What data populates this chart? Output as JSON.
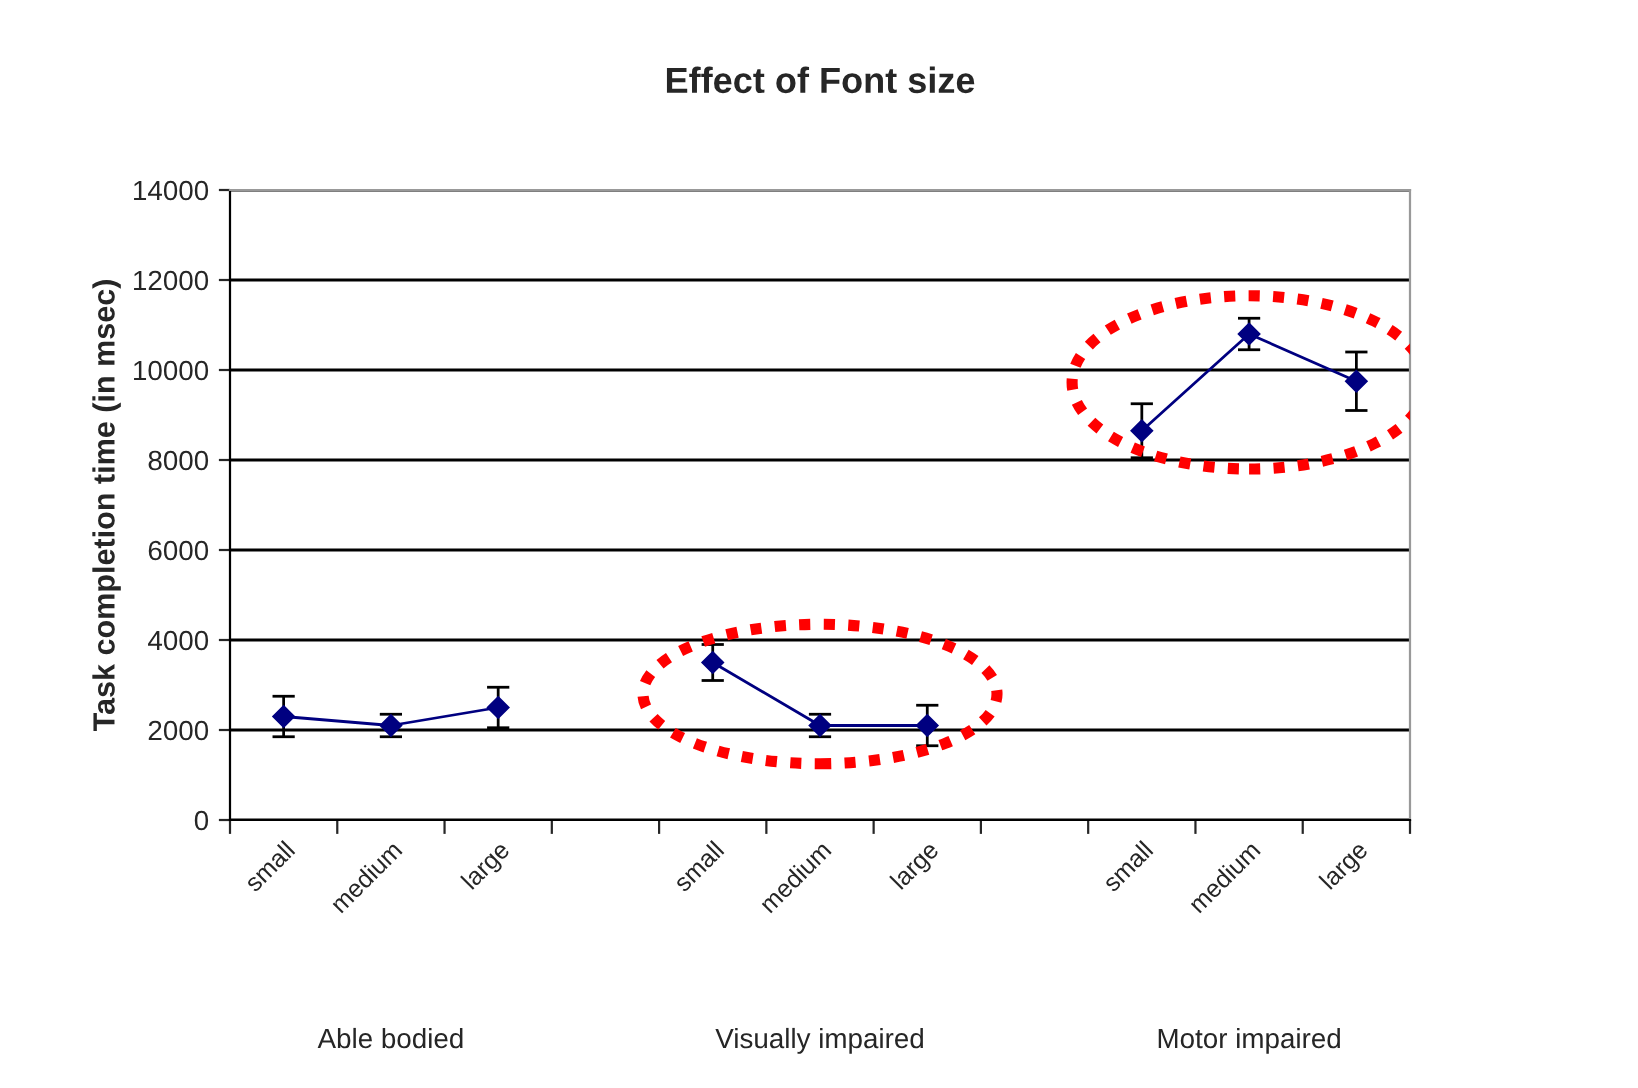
{
  "chart_data": {
    "type": "line",
    "title": "Effect of Font size",
    "ylabel": "Task completion time (in msec)",
    "categories": [
      "small",
      "medium",
      "large",
      null,
      "small",
      "medium",
      "large",
      null,
      "small",
      "medium",
      "large"
    ],
    "series": [
      {
        "color": "#000080",
        "values": [
          2300,
          2100,
          2500,
          null,
          null,
          null,
          null,
          null,
          null,
          null,
          null
        ],
        "errors": [
          450,
          250,
          450,
          null,
          null,
          null,
          null,
          null,
          null,
          null,
          null
        ]
      },
      {
        "color": "#000080",
        "values": [
          null,
          null,
          null,
          null,
          3500,
          2100,
          2100,
          null,
          null,
          null,
          null
        ],
        "errors": [
          null,
          null,
          null,
          null,
          400,
          250,
          450,
          null,
          null,
          null,
          null
        ]
      },
      {
        "color": "#000080",
        "values": [
          null,
          null,
          null,
          null,
          null,
          null,
          null,
          null,
          8650,
          10800,
          9750
        ],
        "errors": [
          null,
          null,
          null,
          null,
          null,
          null,
          null,
          null,
          600,
          350,
          650
        ]
      }
    ],
    "annotations": [
      "Able bodied",
      "Visually impaired",
      "Motor impaired"
    ],
    "ylim": [
      0,
      14000
    ],
    "yticks": [
      0,
      2000,
      4000,
      6000,
      8000,
      10000,
      12000,
      14000
    ],
    "grid": "y",
    "marker": "diamond",
    "line_style": "solid",
    "legend": false
  }
}
